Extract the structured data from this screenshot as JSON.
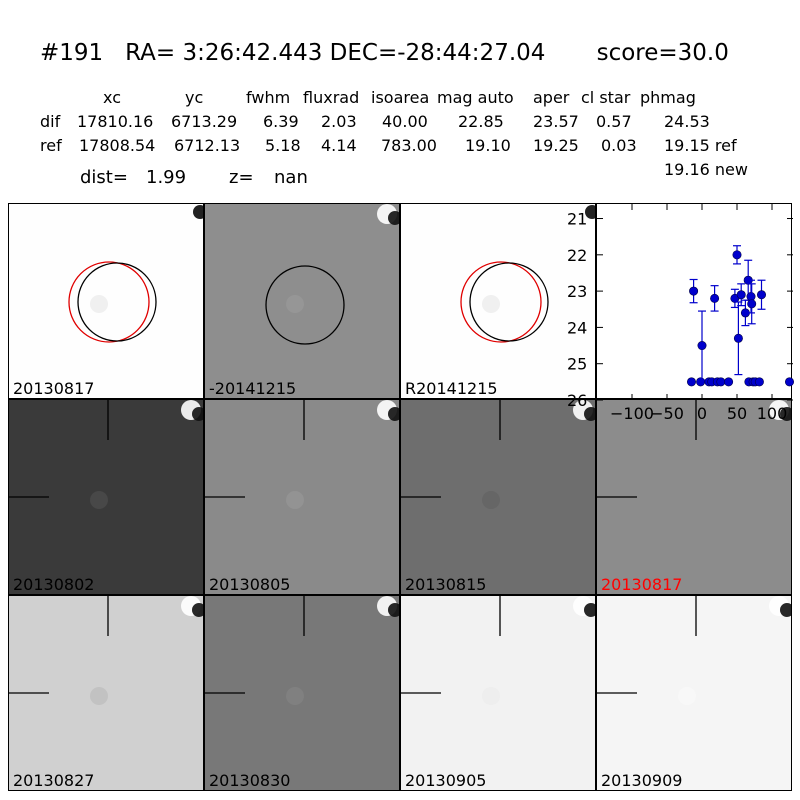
{
  "header": {
    "title": "#191   RA= 3:26:42.443 DEC=-28:44:27.04       score=30.0",
    "columns": [
      "xc",
      "yc",
      "fwhm",
      "fluxrad",
      "isoarea",
      "mag auto",
      "aper",
      "cl star",
      "phmag"
    ],
    "rows": [
      {
        "label": "dif",
        "values": [
          "17810.16",
          "6713.29",
          "6.39",
          "2.03",
          "40.00",
          "22.85",
          "23.57",
          "0.57",
          "24.53"
        ]
      },
      {
        "label": "ref",
        "values": [
          "17808.54",
          "6712.13",
          "5.18",
          "4.14",
          "783.00",
          "19.10",
          "19.25",
          "0.03",
          "19.15 ref"
        ]
      }
    ],
    "phmag_new": "19.16 new",
    "dist_label": "dist=",
    "dist_value": "1.99",
    "z_label": "z=",
    "z_value": "nan"
  },
  "colors": {
    "ref_circle": "#e00000",
    "det_circle": "#000000",
    "point": "#0000cc",
    "highlight_label": "#ff0000"
  },
  "stamps": [
    {
      "label": "20130817",
      "bg": "#fefefe",
      "circles": true,
      "crosshair": false,
      "blob": "#f0f0f0",
      "corner": "dark"
    },
    {
      "label": "-20141215",
      "bg": "#8e8e8e",
      "circles": "black-only",
      "crosshair": false,
      "blob": "#969696",
      "corner": "dipole"
    },
    {
      "label": "R20141215",
      "bg": "#fefefe",
      "circles": true,
      "crosshair": false,
      "blob": "#f0f0f0",
      "corner": "dark"
    },
    {
      "label": "20130802",
      "bg": "#3a3a3a",
      "circles": false,
      "crosshair": true,
      "blob": "#484848",
      "corner": "dipole"
    },
    {
      "label": "20130805",
      "bg": "#8a8a8a",
      "circles": false,
      "crosshair": true,
      "blob": "#939393",
      "corner": "dipole"
    },
    {
      "label": "20130815",
      "bg": "#6e6e6e",
      "circles": false,
      "crosshair": true,
      "blob": "#666666",
      "corner": "dipole"
    },
    {
      "label": "20130817",
      "bg": "#8c8c8c",
      "circles": false,
      "crosshair": true,
      "blob": "#8c8c8c",
      "corner": "dipole",
      "label_color": "#ff0000"
    },
    {
      "label": "20130827",
      "bg": "#d0d0d0",
      "circles": false,
      "crosshair": true,
      "blob": "#c2c2c2",
      "corner": "dipole"
    },
    {
      "label": "20130830",
      "bg": "#787878",
      "circles": false,
      "crosshair": true,
      "blob": "#808080",
      "corner": "dipole"
    },
    {
      "label": "20130905",
      "bg": "#f2f2f2",
      "circles": false,
      "crosshair": true,
      "blob": "#eeeeee",
      "corner": "dipole"
    },
    {
      "label": "20130909",
      "bg": "#f5f5f5",
      "circles": false,
      "crosshair": true,
      "blob": "#f8f8f8",
      "corner": "dipole"
    }
  ],
  "chart_data": {
    "type": "scatter",
    "title": "",
    "xlabel": "",
    "ylabel": "",
    "xlim": [
      -150,
      130
    ],
    "ylim": [
      26,
      20.6
    ],
    "y_inverted": true,
    "xticks": [
      -100,
      -50,
      0,
      50,
      100
    ],
    "xtick_labels": [
      "−100",
      "−50",
      "0",
      "50",
      "100"
    ],
    "yticks": [
      21,
      22,
      23,
      24,
      25,
      26
    ],
    "ytick_labels": [
      "21",
      "22",
      "23",
      "24",
      "25",
      "26"
    ],
    "grid": false,
    "points": [
      {
        "x": -15,
        "y": 25.5,
        "err": 0
      },
      {
        "x": -12,
        "y": 23.0,
        "err": 0.32
      },
      {
        "x": -2,
        "y": 25.5,
        "err": 0
      },
      {
        "x": 0,
        "y": 24.5,
        "err": 0.95
      },
      {
        "x": 10,
        "y": 25.5,
        "err": 0
      },
      {
        "x": 14,
        "y": 25.5,
        "err": 0
      },
      {
        "x": 18,
        "y": 23.2,
        "err": 0.35
      },
      {
        "x": 22,
        "y": 25.5,
        "err": 0
      },
      {
        "x": 27,
        "y": 25.5,
        "err": 0
      },
      {
        "x": 38,
        "y": 25.5,
        "err": 0
      },
      {
        "x": 47,
        "y": 23.2,
        "err": 0.25
      },
      {
        "x": 50,
        "y": 22.0,
        "err": 0.25
      },
      {
        "x": 52,
        "y": 24.3,
        "err": 1.0
      },
      {
        "x": 56,
        "y": 23.1,
        "err": 0.3
      },
      {
        "x": 62,
        "y": 23.6,
        "err": 0.35
      },
      {
        "x": 66,
        "y": 22.7,
        "err": 0.55
      },
      {
        "x": 67,
        "y": 25.5,
        "err": 0
      },
      {
        "x": 70,
        "y": 23.15,
        "err": 0.45
      },
      {
        "x": 71,
        "y": 23.35,
        "err": 0.55
      },
      {
        "x": 73,
        "y": 25.5,
        "err": 0
      },
      {
        "x": 76,
        "y": 25.5,
        "err": 0
      },
      {
        "x": 82,
        "y": 25.5,
        "err": 0
      },
      {
        "x": 85,
        "y": 23.1,
        "err": 0.4
      },
      {
        "x": 125,
        "y": 25.5,
        "err": 0
      }
    ]
  }
}
